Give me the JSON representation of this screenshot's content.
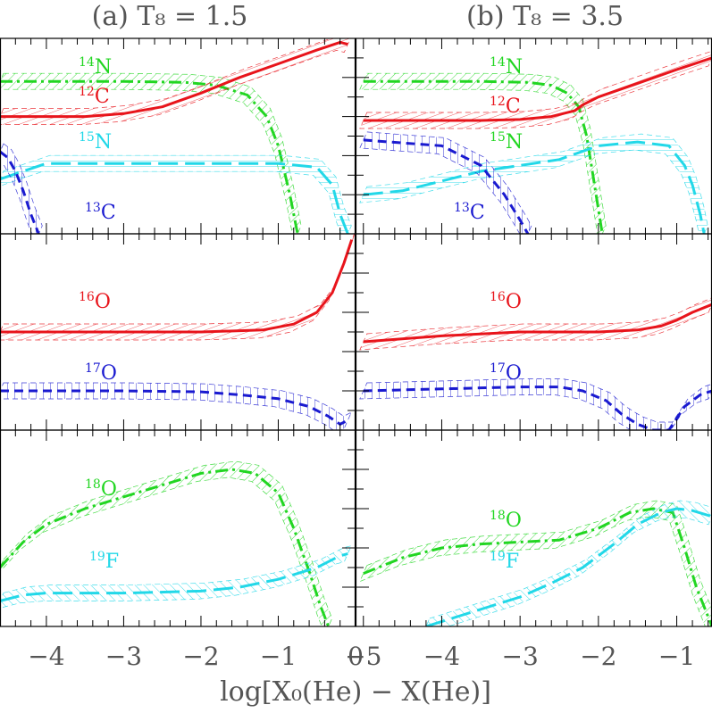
{
  "figure": {
    "xlabel": "log[X₀(He) − X(He)]"
  },
  "colors": {
    "C12": "#e8141b",
    "N14": "#22d622",
    "N15": "#22d8e8",
    "C13": "#1a1ad0",
    "O16": "#e8141b",
    "O17": "#1a1ad0",
    "O18": "#22d622",
    "F19": "#22d8e8",
    "axis": "#000000"
  },
  "chart_data": [
    {
      "type": "line",
      "panel_title": "(a) T₈ = 1.5",
      "xlim": [
        -4.6,
        0.0
      ],
      "x_ticks": [
        -4,
        -3,
        -2,
        -1,
        0
      ],
      "x_tick_labels": [
        "−4",
        "−3",
        "−2",
        "−1",
        "0"
      ],
      "grid": false,
      "subpanels": [
        {
          "series": [
            {
              "name": "¹⁴N",
              "style": "dash-dot",
              "x": [
                -4.6,
                -3,
                -2.2,
                -1.8,
                -1.4,
                -1.15,
                -1.0,
                -0.85,
                -0.75
              ],
              "y": [
                0.78,
                0.78,
                0.775,
                0.76,
                0.71,
                0.6,
                0.45,
                0.2,
                0.0
              ]
            },
            {
              "name": "¹²C",
              "style": "solid",
              "x": [
                -4.6,
                -3.5,
                -3.0,
                -2.5,
                -2.0,
                -1.5,
                -1.0,
                -0.5,
                -0.2,
                -0.1
              ],
              "y": [
                0.6,
                0.6,
                0.615,
                0.65,
                0.72,
                0.8,
                0.87,
                0.94,
                0.98,
                0.97
              ]
            },
            {
              "name": "¹⁵N",
              "style": "long-dash",
              "x": [
                -4.6,
                -4.3,
                -4.0,
                -3.0,
                -2.0,
                -1.0,
                -0.5,
                -0.3,
                -0.2,
                -0.1
              ],
              "y": [
                0.28,
                0.32,
                0.36,
                0.36,
                0.36,
                0.36,
                0.34,
                0.25,
                0.1,
                0.0
              ]
            },
            {
              "name": "¹³C",
              "style": "dash",
              "x": [
                -4.6,
                -4.5,
                -4.4,
                -4.3,
                -4.2,
                -4.1
              ],
              "y": [
                0.42,
                0.39,
                0.32,
                0.22,
                0.1,
                0.0
              ]
            }
          ]
        },
        {
          "series": [
            {
              "name": "¹⁶O",
              "style": "solid",
              "x": [
                -4.6,
                -3,
                -2,
                -1.2,
                -0.8,
                -0.5,
                -0.3,
                -0.15,
                -0.05
              ],
              "y": [
                0.5,
                0.5,
                0.5,
                0.51,
                0.54,
                0.6,
                0.7,
                0.85,
                0.97
              ]
            },
            {
              "name": "¹⁷O",
              "style": "dash",
              "x": [
                -4.6,
                -3,
                -2,
                -1.5,
                -1.0,
                -0.6,
                -0.35,
                -0.2,
                -0.1
              ],
              "y": [
                0.2,
                0.2,
                0.195,
                0.18,
                0.16,
                0.12,
                0.07,
                0.03,
                0.05
              ]
            }
          ]
        },
        {
          "series": [
            {
              "name": "¹⁸O",
              "style": "dash-dot",
              "x": [
                -4.6,
                -4.3,
                -4.0,
                -3.5,
                -3.0,
                -2.5,
                -2.0,
                -1.6,
                -1.3,
                -1.0,
                -0.8,
                -0.6,
                -0.45,
                -0.35
              ],
              "y": [
                0.3,
                0.43,
                0.52,
                0.6,
                0.66,
                0.72,
                0.78,
                0.8,
                0.78,
                0.68,
                0.5,
                0.28,
                0.1,
                0.0
              ]
            },
            {
              "name": "¹⁹F",
              "style": "long-dash",
              "x": [
                -4.6,
                -4.3,
                -4.0,
                -3.0,
                -2.0,
                -1.5,
                -1.0,
                -0.5,
                -0.2,
                -0.1
              ],
              "y": [
                0.13,
                0.16,
                0.17,
                0.17,
                0.18,
                0.2,
                0.24,
                0.3,
                0.36,
                0.37
              ]
            }
          ]
        }
      ]
    },
    {
      "type": "line",
      "panel_title": "(b) T₈ = 3.5",
      "xlim": [
        -5.1,
        -0.55
      ],
      "x_ticks": [
        -5,
        -4,
        -3,
        -2,
        -1
      ],
      "x_tick_labels": [
        "−5",
        "−4",
        "−3",
        "−2",
        "−1"
      ],
      "grid": false,
      "subpanels": [
        {
          "series": [
            {
              "name": "¹⁴N",
              "style": "dash-dot",
              "x": [
                -5.0,
                -3.5,
                -2.9,
                -2.6,
                -2.4,
                -2.25,
                -2.15,
                -2.05,
                -1.95
              ],
              "y": [
                0.78,
                0.78,
                0.775,
                0.76,
                0.72,
                0.65,
                0.5,
                0.25,
                0.0
              ]
            },
            {
              "name": "¹²C",
              "style": "solid",
              "x": [
                -5.0,
                -3.5,
                -3.0,
                -2.6,
                -2.3,
                -2.2,
                -2.0,
                -1.5,
                -1.0,
                -0.55
              ],
              "y": [
                0.58,
                0.58,
                0.585,
                0.6,
                0.63,
                0.66,
                0.7,
                0.77,
                0.84,
                0.9
              ]
            },
            {
              "name": "¹⁵N",
              "style": "long-dash",
              "x": [
                -5.0,
                -4.5,
                -4.0,
                -3.5,
                -3.0,
                -2.5,
                -2.0,
                -1.5,
                -1.1,
                -0.9,
                -0.8,
                -0.7,
                -0.65
              ],
              "y": [
                0.2,
                0.22,
                0.27,
                0.32,
                0.35,
                0.38,
                0.45,
                0.47,
                0.45,
                0.35,
                0.25,
                0.1,
                0.0
              ]
            },
            {
              "name": "¹³C",
              "style": "dash",
              "x": [
                -5.0,
                -4.0,
                -3.5,
                -3.2,
                -3.0,
                -2.9
              ],
              "y": [
                0.48,
                0.45,
                0.35,
                0.2,
                0.07,
                0.0
              ]
            }
          ]
        },
        {
          "series": [
            {
              "name": "¹⁶O",
              "style": "solid",
              "x": [
                -5.0,
                -4.0,
                -3.0,
                -2.0,
                -1.5,
                -1.2,
                -1.0,
                -0.8,
                -0.55
              ],
              "y": [
                0.45,
                0.48,
                0.5,
                0.5,
                0.51,
                0.53,
                0.56,
                0.6,
                0.64
              ]
            },
            {
              "name": "¹⁷O",
              "style": "dash",
              "x": [
                -5.0,
                -4.0,
                -3.0,
                -2.5,
                -2.2,
                -1.9,
                -1.7,
                -1.5,
                -1.3,
                -1.1,
                -0.9,
                -0.7,
                -0.55
              ],
              "y": [
                0.2,
                0.21,
                0.22,
                0.22,
                0.2,
                0.15,
                0.08,
                0.03,
                0.0,
                0.0,
                0.12,
                0.18,
                0.2
              ]
            }
          ]
        },
        {
          "series": [
            {
              "name": "¹⁸O",
              "style": "dash-dot",
              "x": [
                -5.0,
                -4.5,
                -4.0,
                -3.5,
                -3.0,
                -2.5,
                -2.0,
                -1.6,
                -1.3,
                -1.05,
                -0.9,
                -0.75,
                -0.6,
                -0.55
              ],
              "y": [
                0.27,
                0.35,
                0.4,
                0.42,
                0.43,
                0.44,
                0.5,
                0.58,
                0.6,
                0.58,
                0.4,
                0.2,
                0.05,
                0.0
              ]
            },
            {
              "name": "¹⁹F",
              "style": "long-dash",
              "x": [
                -4.2,
                -3.8,
                -3.4,
                -3.0,
                -2.6,
                -2.2,
                -1.8,
                -1.5,
                -1.2,
                -1.0,
                -0.8,
                -0.55
              ],
              "y": [
                0.0,
                0.05,
                0.1,
                0.15,
                0.22,
                0.3,
                0.42,
                0.52,
                0.58,
                0.6,
                0.59,
                0.56
              ]
            }
          ]
        }
      ]
    }
  ]
}
